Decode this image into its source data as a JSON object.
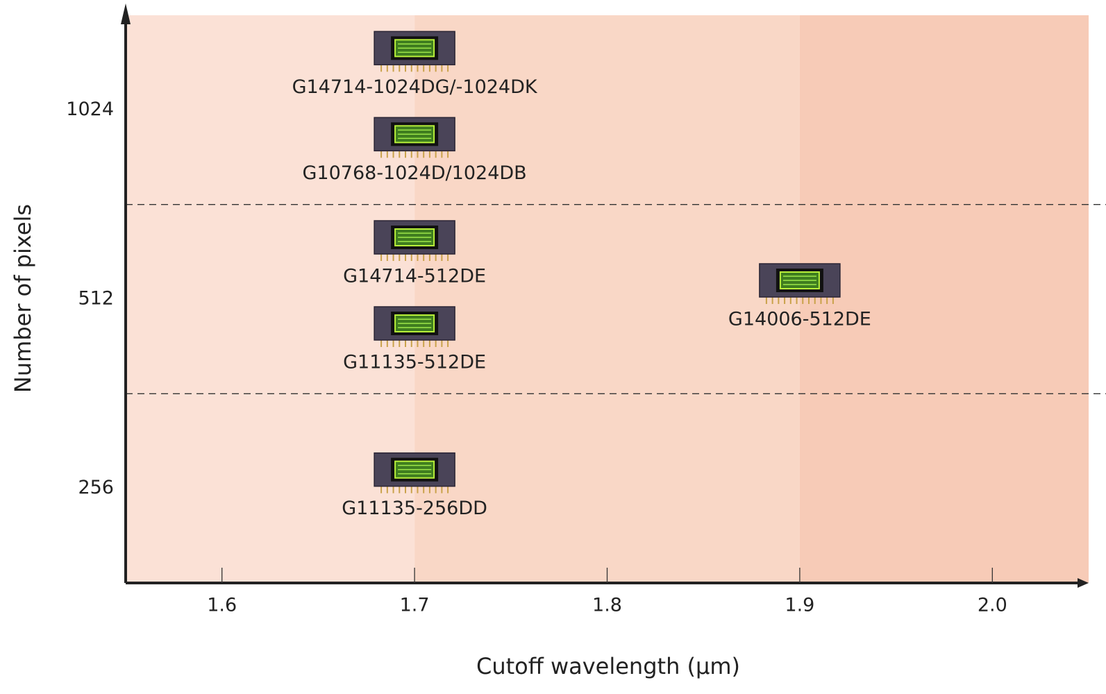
{
  "chart_data": {
    "type": "scatter",
    "x_label": "Cutoff wavelength (μm)",
    "y_label": "Number of pixels",
    "xlim": [
      1.55,
      2.05
    ],
    "xticks": [
      1.6,
      1.7,
      1.8,
      1.9,
      {
        "value": 2.0,
        "label": "2.0"
      }
    ],
    "yticks": [
      256,
      512,
      1024
    ],
    "y_scale": "category",
    "region_edges": [
      1.7,
      1.9
    ],
    "region_colors": [
      "#fbe1d6",
      "#f9d7c6",
      "#f7cbb7"
    ],
    "points": [
      {
        "label": "G14714-1024DG/-1024DK",
        "x": 1.7,
        "y": 1024
      },
      {
        "label": "G10768-1024D/1024DB",
        "x": 1.7,
        "y": 1024
      },
      {
        "label": "G14714-512DE",
        "x": 1.7,
        "y": 512
      },
      {
        "label": "G11135-512DE",
        "x": 1.7,
        "y": 512
      },
      {
        "label": "G14006-512DE",
        "x": 1.9,
        "y": 512
      },
      {
        "label": "G11135-256DD",
        "x": 1.7,
        "y": 256
      }
    ]
  }
}
